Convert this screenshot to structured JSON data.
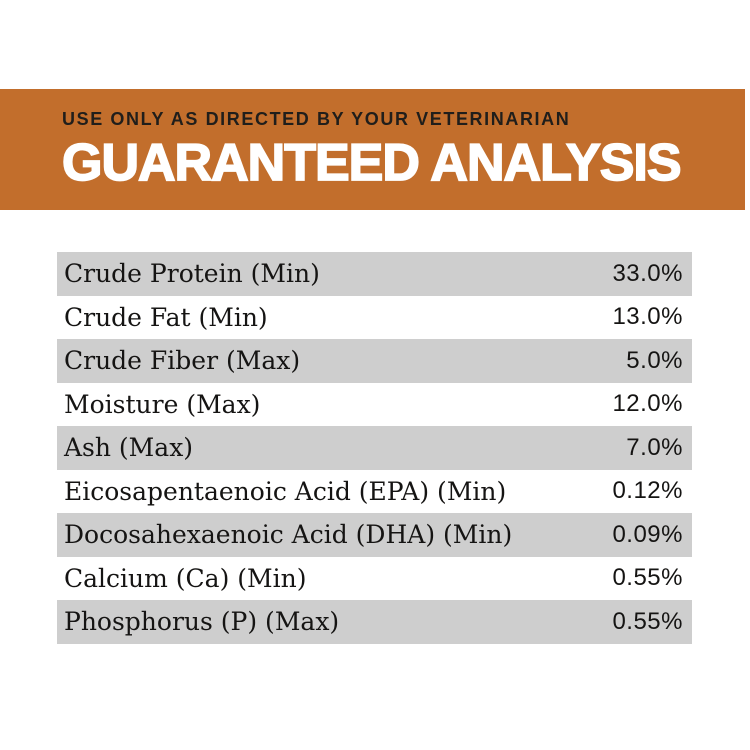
{
  "banner": {
    "kicker": "USE ONLY AS DIRECTED BY YOUR VETERINARIAN",
    "title": "GUARANTEED ANALYSIS",
    "bg_color": "#C26E2C",
    "kicker_color": "#201E1B",
    "title_color": "#FFFFFF"
  },
  "analysis_table": {
    "stripe_color": "#CECECE",
    "text_color": "#151413",
    "rows": [
      {
        "label": "Crude Protein (Min)",
        "value": "33.0%"
      },
      {
        "label": "Crude Fat (Min)",
        "value": "13.0%"
      },
      {
        "label": "Crude Fiber (Max)",
        "value": "5.0%"
      },
      {
        "label": "Moisture (Max)",
        "value": "12.0%"
      },
      {
        "label": "Ash (Max)",
        "value": "7.0%"
      },
      {
        "label": "Eicosapentaenoic Acid (EPA) (Min)",
        "value": "0.12%"
      },
      {
        "label": "Docosahexaenoic Acid (DHA) (Min)",
        "value": "0.09%"
      },
      {
        "label": "Calcium (Ca) (Min)",
        "value": "0.55%"
      },
      {
        "label": "Phosphorus (P) (Max)",
        "value": "0.55%"
      }
    ]
  }
}
